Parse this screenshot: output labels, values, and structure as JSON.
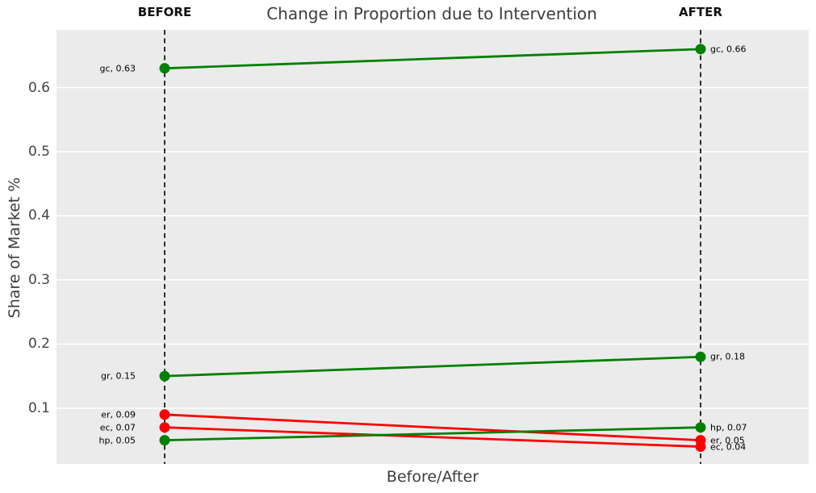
{
  "title": "Change in Proportion due to Intervention",
  "columns": {
    "before": "BEFORE",
    "after": "AFTER"
  },
  "axes": {
    "ylabel": "Share of Market %",
    "xlabel": "Before/After",
    "yticks": [
      {
        "label": "0.6",
        "value": 0.6
      },
      {
        "label": "0.5",
        "value": 0.5
      },
      {
        "label": "0.4",
        "value": 0.4
      },
      {
        "label": "0.3",
        "value": 0.3
      },
      {
        "label": "0.2",
        "value": 0.2
      },
      {
        "label": "0.1",
        "value": 0.1
      }
    ]
  },
  "annotations": {
    "left": [
      {
        "text": "gc, 0.63",
        "value": 0.63
      },
      {
        "text": "gr, 0.15",
        "value": 0.15
      },
      {
        "text": "er, 0.09",
        "value": 0.09
      },
      {
        "text": "ec, 0.07",
        "value": 0.07
      },
      {
        "text": "hp, 0.05",
        "value": 0.05
      }
    ],
    "right": [
      {
        "text": "gc, 0.66",
        "value": 0.66
      },
      {
        "text": "gr, 0.18",
        "value": 0.18
      },
      {
        "text": "hp, 0.07",
        "value": 0.07
      },
      {
        "text": "er, 0.05",
        "value": 0.05
      },
      {
        "text": "ec, 0.04",
        "value": 0.04
      }
    ]
  },
  "chart_data": {
    "type": "line",
    "subtype": "slope",
    "title": "Change in Proportion due to Intervention",
    "xlabel": "Before/After",
    "ylabel": "Share of Market %",
    "categories": [
      "BEFORE",
      "AFTER"
    ],
    "series": [
      {
        "name": "gc",
        "values": [
          0.63,
          0.66
        ],
        "color": "#008000",
        "direction": "increase"
      },
      {
        "name": "gr",
        "values": [
          0.15,
          0.18
        ],
        "color": "#008000",
        "direction": "increase"
      },
      {
        "name": "er",
        "values": [
          0.09,
          0.05
        ],
        "color": "#ff0000",
        "direction": "decrease"
      },
      {
        "name": "ec",
        "values": [
          0.07,
          0.04
        ],
        "color": "#ff0000",
        "direction": "decrease"
      },
      {
        "name": "hp",
        "values": [
          0.05,
          0.07
        ],
        "color": "#008000",
        "direction": "increase"
      }
    ],
    "ylim": [
      0.013,
      0.69
    ],
    "grid": true,
    "legend": "none",
    "colors": {
      "increase": "#008000",
      "decrease": "#ff0000",
      "plot_background": "#ebebeb",
      "gridline": "#ffffff",
      "column_guide": "#000000",
      "text": "#3d3d3d",
      "annotation_text": "#000000"
    }
  }
}
